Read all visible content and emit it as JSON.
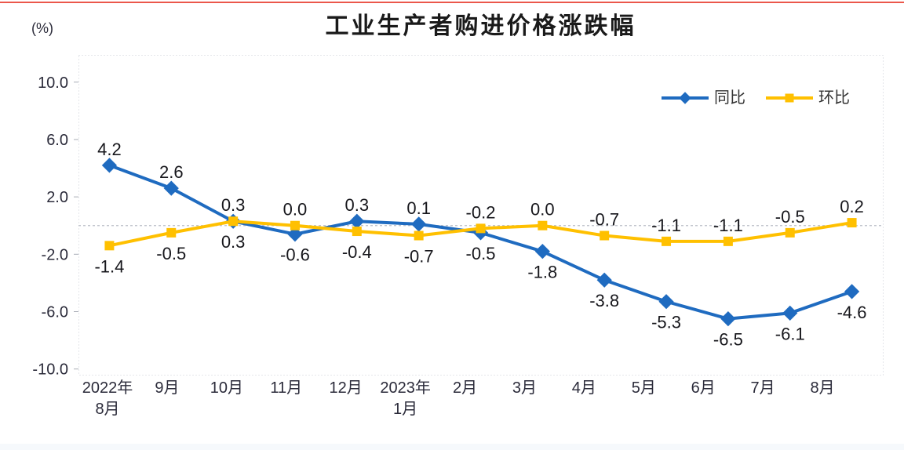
{
  "chart_data": {
    "type": "line",
    "title": "工业生产者购进价格涨跌幅",
    "unit_label": "(%)",
    "categories": [
      "2022年\n8月",
      "9月",
      "10月",
      "11月",
      "12月",
      "2023年\n1月",
      "2月",
      "3月",
      "4月",
      "5月",
      "6月",
      "7月",
      "8月"
    ],
    "series": [
      {
        "name": "同比",
        "color": "#1F6BC0",
        "marker": "diamond",
        "values": [
          4.2,
          2.6,
          0.3,
          -0.6,
          0.3,
          0.1,
          -0.5,
          -1.8,
          -3.8,
          -5.3,
          -6.5,
          -6.1,
          -4.6
        ],
        "label_side": [
          "above",
          "above",
          "above",
          "below",
          "above",
          "above",
          "below",
          "below",
          "below",
          "below",
          "below",
          "below",
          "below"
        ]
      },
      {
        "name": "环比",
        "color": "#FFC000",
        "marker": "square",
        "values": [
          -1.4,
          -0.5,
          0.3,
          0.0,
          -0.4,
          -0.7,
          -0.2,
          0.0,
          -0.7,
          -1.1,
          -1.1,
          -0.5,
          0.2
        ],
        "label_side": [
          "below",
          "below",
          "below",
          "above",
          "below",
          "below",
          "above",
          "above",
          "above",
          "above",
          "above",
          "above",
          "above"
        ]
      }
    ],
    "y_axis": {
      "tick_values": [
        10.0,
        6.0,
        2.0,
        -2.0,
        -6.0,
        -10.0
      ],
      "tick_labels": [
        "10.0",
        "6.0",
        "2.0",
        "-2.0",
        "-6.0",
        "-10.0"
      ],
      "max": 11.9,
      "min": -10.4
    },
    "legend": {
      "position": "top-right",
      "items": [
        "同比",
        "环比"
      ]
    },
    "grid": {
      "zero_line": true,
      "border": "dotted"
    },
    "accent_colors": {
      "top_bar": "#E8392B",
      "series_yoy": "#1F6BC0",
      "series_mom": "#FFC000"
    }
  }
}
